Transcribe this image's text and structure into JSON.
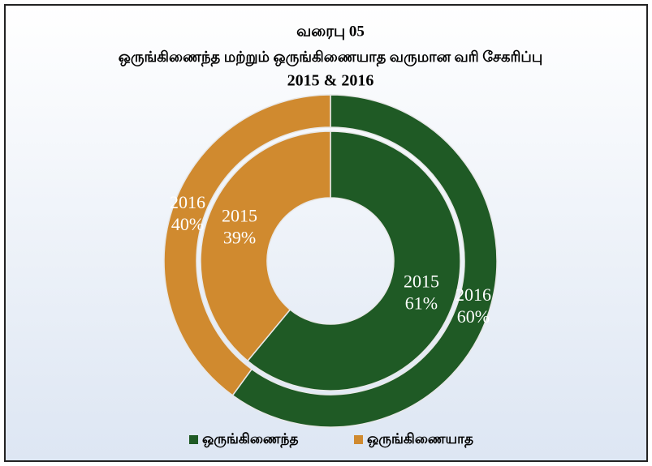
{
  "chart_data": {
    "type": "donut",
    "title": [
      "வரைபு 05",
      "ஒருங்கிணைந்த மற்றும் ஒருங்கிணையாத வருமான வரி சேகரிப்பு",
      "2015 & 2016"
    ],
    "categories": [
      "ஒருங்கிணைந்த",
      "ஒருங்கிணையாத"
    ],
    "colors": [
      "#1f5a25",
      "#d08a2f"
    ],
    "series": [
      {
        "name": "2015",
        "values": [
          61,
          39
        ],
        "value_labels": [
          "61%",
          "39%"
        ]
      },
      {
        "name": "2016",
        "values": [
          60,
          40
        ],
        "value_labels": [
          "60%",
          "40%"
        ]
      }
    ],
    "legend": "bottom"
  }
}
